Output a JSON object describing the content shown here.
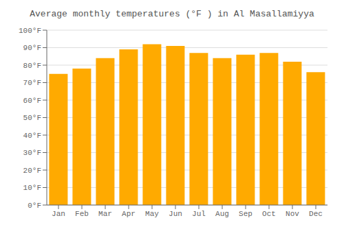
{
  "chart_data": {
    "type": "bar",
    "title": "Average monthly temperatures (°F ) in Al Masallamiyya",
    "categories": [
      "Jan",
      "Feb",
      "Mar",
      "Apr",
      "May",
      "Jun",
      "Jul",
      "Aug",
      "Sep",
      "Oct",
      "Nov",
      "Dec"
    ],
    "values": [
      75,
      78,
      84,
      89,
      92,
      91,
      87,
      84,
      86,
      87,
      82,
      76
    ],
    "color": "#FFAA00",
    "ylim": [
      0,
      100
    ],
    "yticks": [
      {
        "value": 0,
        "label": "0°F"
      },
      {
        "value": 10,
        "label": "10°F"
      },
      {
        "value": 20,
        "label": "20°F"
      },
      {
        "value": 30,
        "label": "30°F"
      },
      {
        "value": 40,
        "label": "40°F"
      },
      {
        "value": 50,
        "label": "50°F"
      },
      {
        "value": 60,
        "label": "60°F"
      },
      {
        "value": 70,
        "label": "70°F"
      },
      {
        "value": 80,
        "label": "80°F"
      },
      {
        "value": 90,
        "label": "90°F"
      },
      {
        "value": 100,
        "label": "100°F"
      }
    ],
    "grid": true
  }
}
